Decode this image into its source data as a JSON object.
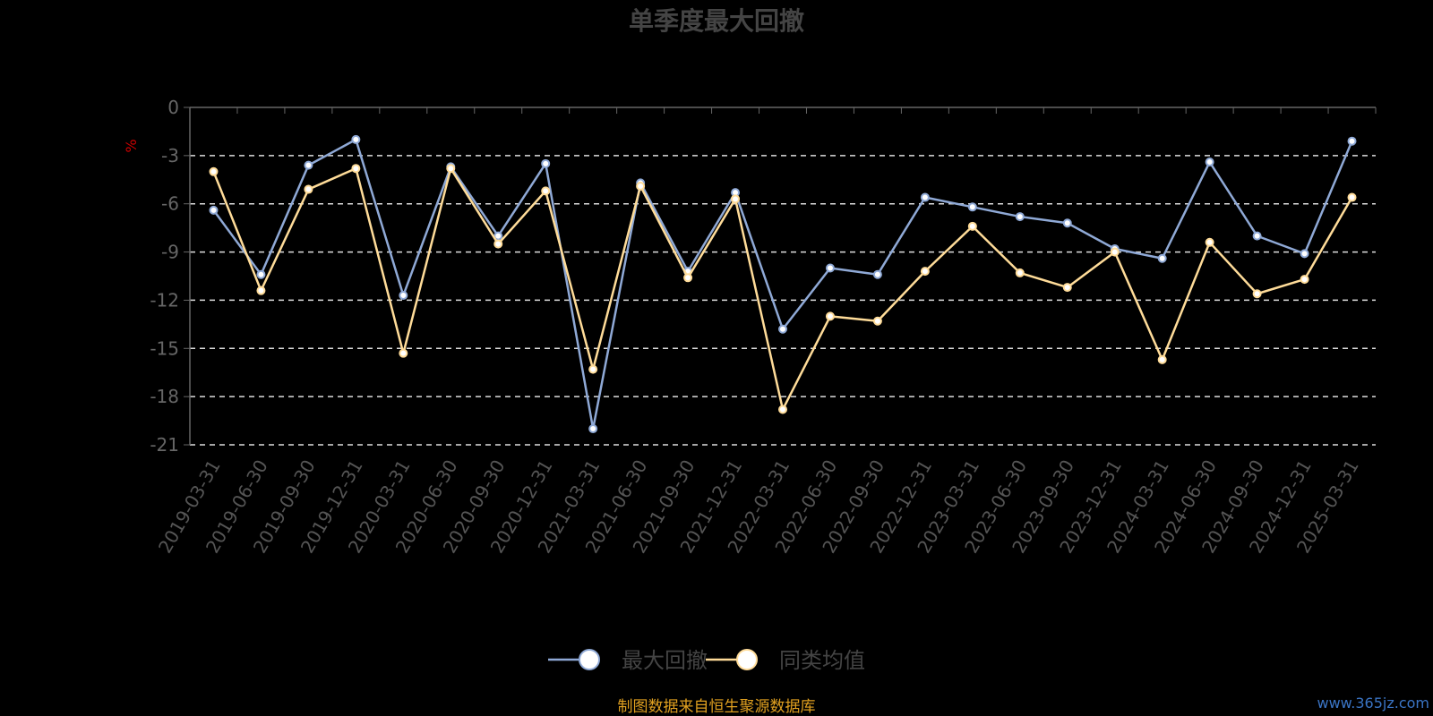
{
  "chart_data": {
    "type": "line",
    "title": "单季度最大回撤",
    "ylabel": "%",
    "ylim": [
      -21,
      0
    ],
    "yticks": [
      0,
      -3,
      -6,
      -9,
      -12,
      -15,
      -18,
      -21
    ],
    "grid": true,
    "legend_position": "bottom-center",
    "categories": [
      "2019-03-31",
      "2019-06-30",
      "2019-09-30",
      "2019-12-31",
      "2020-03-31",
      "2020-06-30",
      "2020-09-30",
      "2020-12-31",
      "2021-03-31",
      "2021-06-30",
      "2021-09-30",
      "2021-12-31",
      "2022-03-31",
      "2022-06-30",
      "2022-09-30",
      "2022-12-31",
      "2023-03-31",
      "2023-06-30",
      "2023-09-30",
      "2023-12-31",
      "2024-03-31",
      "2024-06-30",
      "2024-09-30",
      "2024-12-31",
      "2025-03-31"
    ],
    "series": [
      {
        "name": "最大回撤",
        "color": "#8fa9d6",
        "values": [
          -6.4,
          -10.4,
          -3.6,
          -2.0,
          -11.7,
          -3.7,
          -8.0,
          -3.5,
          -20.0,
          -4.7,
          -10.2,
          -5.3,
          -13.8,
          -10.0,
          -10.4,
          -5.6,
          -6.2,
          -6.8,
          -7.2,
          -8.8,
          -9.4,
          -3.4,
          -8.0,
          -9.1,
          -2.1
        ]
      },
      {
        "name": "同类均值",
        "color": "#ffdc99",
        "values": [
          -4.0,
          -11.4,
          -5.1,
          -3.8,
          -15.3,
          -3.8,
          -8.5,
          -5.2,
          -16.3,
          -4.9,
          -10.6,
          -5.7,
          -18.8,
          -13.0,
          -13.3,
          -10.2,
          -7.4,
          -10.3,
          -11.2,
          -9.0,
          -15.7,
          -8.4,
          -11.6,
          -10.7,
          -5.6
        ]
      }
    ],
    "source_note": "制图数据来自恒生聚源数据库",
    "watermark": "www.365jz.com"
  }
}
